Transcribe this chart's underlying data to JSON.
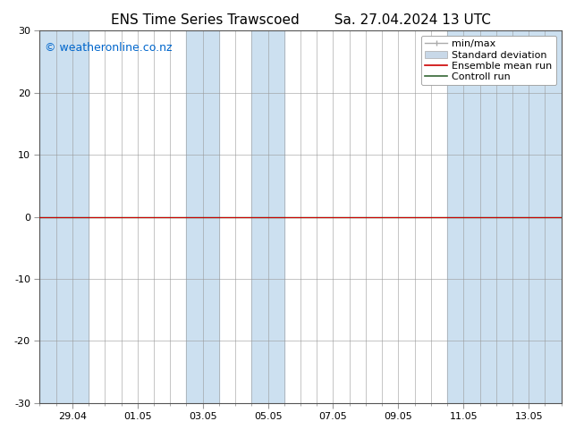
{
  "title_left": "ENS Time Series Trawscoed",
  "title_right": "Sa. 27.04.2024 13 UTC",
  "watermark": "© weatheronline.co.nz",
  "watermark_color": "#0066cc",
  "ylim": [
    -30,
    30
  ],
  "yticks": [
    -30,
    -20,
    -10,
    0,
    10,
    20,
    30
  ],
  "x_labels": [
    "29.04",
    "01.05",
    "03.05",
    "05.05",
    "07.05",
    "09.05",
    "11.05",
    "13.05"
  ],
  "x_positions": [
    1,
    3,
    5,
    7,
    9,
    11,
    13,
    15
  ],
  "xlim": [
    0,
    16
  ],
  "bg_color": "#ffffff",
  "plot_bg_color": "#ffffff",
  "shaded_ranges": [
    [
      0.0,
      1.5
    ],
    [
      4.5,
      5.5
    ],
    [
      6.5,
      7.5
    ],
    [
      12.5,
      16.0
    ]
  ],
  "shaded_color": "#cce0f0",
  "grid_color": "#999999",
  "zero_line_color": "#336633",
  "ensemble_mean_color": "#cc0000",
  "control_run_color": "#336633",
  "title_fontsize": 11,
  "axis_fontsize": 8,
  "watermark_fontsize": 9,
  "legend_fontsize": 8
}
